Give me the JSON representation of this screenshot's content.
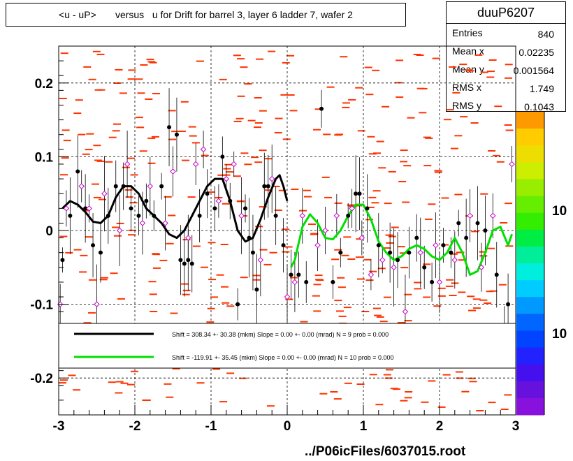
{
  "title": "<u - uP>       versus   u for Drift for barrel 3, layer 6 ladder 7, wafer 2",
  "stats": {
    "name": "duuP6207",
    "rows": [
      {
        "key": "Entries",
        "value": "840"
      },
      {
        "key": "Mean x",
        "value": "0.02235"
      },
      {
        "key": "Mean y",
        "value": "0.001564"
      },
      {
        "key": "RMS x",
        "value": "1.749"
      },
      {
        "key": "RMS y",
        "value": "0.1043"
      }
    ]
  },
  "legend": {
    "entries": [
      {
        "text": "Shift =   308.34 +- 30.38 (mkm) Slope =     0.00 +- 0.00 (mrad)  N = 9 prob = 0.000",
        "color": "#000000"
      },
      {
        "text": "Shift =  -119.91 +- 35.45 (mkm) Slope =     0.00 +- 0.00 (mrad)  N = 10 prob = 0.000",
        "color": "#00e000"
      }
    ]
  },
  "palette_labels": [
    "10",
    "10"
  ],
  "footer": "../P06icFiles/6037015.root",
  "chart_data": {
    "type": "scatter",
    "xlim": [
      -3,
      3
    ],
    "ylim": [
      -0.25,
      0.25
    ],
    "x_ticks": [
      "-3",
      "-2",
      "-1",
      "0",
      "1",
      "2",
      "3"
    ],
    "y_ticks": [
      "-0.2",
      "-0.1",
      "0",
      "0.1",
      "0.2"
    ],
    "grid": true,
    "colors": {
      "background_cells": "#ff3300",
      "points_black": "#000000",
      "points_open": "#cc00cc",
      "fit_left": "#000000",
      "fit_right": "#00e000"
    },
    "series": [
      {
        "marker": "filled-circle",
        "x": [
          -2.95,
          -2.85,
          -2.75,
          -2.65,
          -2.55,
          -2.45,
          -2.35,
          -2.25,
          -2.15,
          -2.05,
          -1.95,
          -1.85,
          -1.75,
          -1.65,
          -1.55,
          -1.45,
          -1.4,
          -1.35,
          -1.3,
          -1.25,
          -1.15,
          -1.05,
          -0.95,
          -0.85,
          -0.75,
          -0.65,
          -0.55,
          -0.5,
          -0.45,
          -0.4,
          -0.3,
          -0.25,
          -0.15,
          -0.05,
          0.05,
          0.15,
          0.25,
          0.45,
          0.6,
          0.7,
          0.8,
          0.9,
          0.95,
          1.05,
          1.2,
          1.35,
          1.45,
          1.6,
          1.7,
          1.8,
          1.9,
          2.05,
          2.15,
          2.25,
          2.35,
          2.5,
          2.6,
          2.75,
          2.9
        ],
        "y": [
          -0.04,
          0.02,
          0.08,
          0.03,
          -0.02,
          -0.03,
          0.02,
          0.06,
          0.06,
          0.03,
          0.02,
          0.04,
          0.02,
          0.06,
          0.14,
          0.13,
          -0.04,
          -0.045,
          -0.04,
          -0.045,
          0.02,
          0.05,
          0.03,
          0.1,
          0.04,
          -0.1,
          0.03,
          -0.01,
          -0.03,
          -0.08,
          0.06,
          0.06,
          0.02,
          -0.02,
          -0.06,
          -0.06,
          -0.07,
          0.165,
          -0.07,
          -0.03,
          0.02,
          0.05,
          0.05,
          0.03,
          -0.02,
          -0.03,
          -0.04,
          -0.03,
          -0.01,
          -0.05,
          -0.07,
          -0.02,
          -0.03,
          0.01,
          -0.01,
          0.01,
          0.0,
          -0.06,
          -0.1
        ]
      },
      {
        "marker": "open-diamond",
        "x": [
          -2.98,
          -2.9,
          -2.7,
          -2.6,
          -2.5,
          -2.4,
          -2.2,
          -2.1,
          -1.9,
          -1.8,
          -1.6,
          -1.5,
          -1.3,
          -1.2,
          -1.1,
          -0.9,
          -0.8,
          -0.7,
          -0.6,
          -0.35,
          -0.2,
          0.0,
          0.1,
          0.2,
          0.4,
          0.5,
          0.65,
          0.85,
          0.98,
          1.1,
          1.25,
          1.4,
          1.55,
          1.75,
          1.95,
          2.0,
          2.2,
          2.4,
          2.55,
          2.7,
          2.85,
          2.95
        ],
        "y": [
          -0.1,
          0.03,
          0.06,
          0.03,
          -0.1,
          0.05,
          0.0,
          0.09,
          0.01,
          0.06,
          0.01,
          0.08,
          -0.01,
          0.09,
          0.11,
          0.04,
          0.07,
          0.09,
          0.02,
          -0.04,
          0.07,
          -0.09,
          -0.07,
          0.02,
          -0.02,
          0.0,
          0.02,
          0.03,
          -0.01,
          -0.06,
          -0.04,
          -0.05,
          -0.11,
          -0.03,
          -0.02,
          -0.07,
          -0.04,
          0.02,
          -0.05,
          0.02,
          -0.13,
          0.09
        ]
      }
    ],
    "fits": [
      {
        "color": "#000000",
        "x": [
          -2.95,
          -2.85,
          -2.75,
          -2.65,
          -2.55,
          -2.45,
          -2.35,
          -2.25,
          -2.15,
          -2.05,
          -1.95,
          -1.85,
          -1.75,
          -1.65,
          -1.55,
          -1.45,
          -1.35,
          -1.25,
          -1.15,
          -1.05,
          -0.95,
          -0.85,
          -0.75,
          -0.65,
          -0.55,
          -0.45,
          -0.35,
          -0.25,
          -0.15,
          -0.1,
          -0.05,
          0.0
        ],
        "y": [
          0.03,
          0.04,
          0.035,
          0.025,
          0.012,
          0.01,
          0.02,
          0.045,
          0.06,
          0.06,
          0.05,
          0.03,
          0.02,
          0.01,
          -0.005,
          -0.01,
          0.0,
          0.02,
          0.04,
          0.06,
          0.07,
          0.07,
          0.04,
          0.0,
          -0.015,
          -0.01,
          0.015,
          0.045,
          0.07,
          0.075,
          0.06,
          0.04
        ]
      },
      {
        "color": "#00e000",
        "x": [
          0.05,
          0.1,
          0.2,
          0.3,
          0.4,
          0.5,
          0.6,
          0.7,
          0.8,
          0.9,
          1.0,
          1.1,
          1.2,
          1.3,
          1.4,
          1.5,
          1.6,
          1.7,
          1.8,
          1.9,
          2.0,
          2.1,
          2.2,
          2.3,
          2.4,
          2.5,
          2.6,
          2.7,
          2.8,
          2.9,
          2.95
        ],
        "y": [
          -0.05,
          -0.04,
          0.005,
          0.022,
          0.01,
          -0.01,
          -0.012,
          0.0,
          0.02,
          0.035,
          0.035,
          0.015,
          -0.015,
          -0.03,
          -0.04,
          -0.035,
          -0.025,
          -0.02,
          -0.025,
          -0.035,
          -0.04,
          -0.03,
          -0.01,
          -0.03,
          -0.06,
          -0.055,
          -0.03,
          0.0,
          0.005,
          -0.02,
          -0.005
        ]
      }
    ]
  }
}
